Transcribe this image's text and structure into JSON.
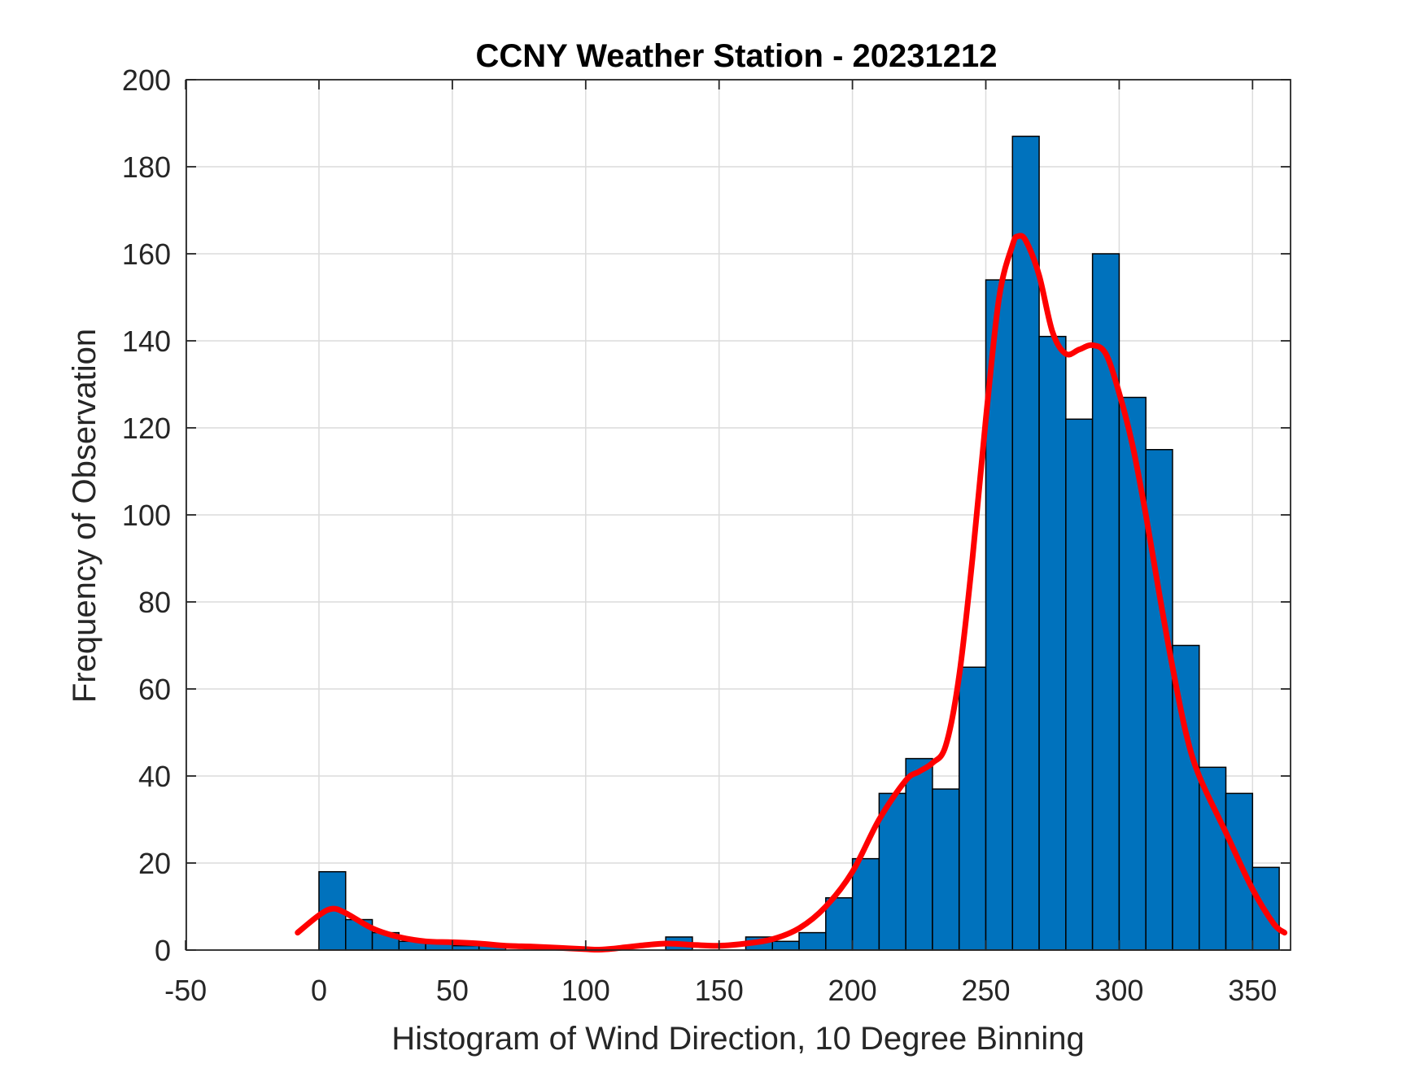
{
  "chart_data": {
    "type": "bar",
    "title": "CCNY Weather Station - 20231212",
    "xlabel": "Histogram of Wind Direction, 10 Degree Binning",
    "ylabel": "Frequency of Observation",
    "xlim": [
      -50,
      365
    ],
    "ylim": [
      0,
      200
    ],
    "xticks": [
      "-50",
      "0",
      "50",
      "100",
      "150",
      "200",
      "250",
      "300",
      "350"
    ],
    "yticks": [
      "0",
      "20",
      "40",
      "60",
      "80",
      "100",
      "120",
      "140",
      "160",
      "180",
      "200"
    ],
    "grid": true,
    "bin_width": 10,
    "bins": [
      {
        "x0": 0,
        "x1": 10,
        "count": 18
      },
      {
        "x0": 10,
        "x1": 20,
        "count": 7
      },
      {
        "x0": 20,
        "x1": 30,
        "count": 4
      },
      {
        "x0": 30,
        "x1": 40,
        "count": 2
      },
      {
        "x0": 40,
        "x1": 50,
        "count": 2
      },
      {
        "x0": 50,
        "x1": 60,
        "count": 1
      },
      {
        "x0": 60,
        "x1": 70,
        "count": 1
      },
      {
        "x0": 70,
        "x1": 80,
        "count": 0
      },
      {
        "x0": 80,
        "x1": 90,
        "count": 0
      },
      {
        "x0": 90,
        "x1": 100,
        "count": 0
      },
      {
        "x0": 100,
        "x1": 110,
        "count": 0
      },
      {
        "x0": 110,
        "x1": 120,
        "count": 0
      },
      {
        "x0": 120,
        "x1": 130,
        "count": 0
      },
      {
        "x0": 130,
        "x1": 140,
        "count": 3
      },
      {
        "x0": 140,
        "x1": 150,
        "count": 0
      },
      {
        "x0": 150,
        "x1": 160,
        "count": 0
      },
      {
        "x0": 160,
        "x1": 170,
        "count": 3
      },
      {
        "x0": 170,
        "x1": 180,
        "count": 2
      },
      {
        "x0": 180,
        "x1": 190,
        "count": 4
      },
      {
        "x0": 190,
        "x1": 200,
        "count": 12
      },
      {
        "x0": 200,
        "x1": 210,
        "count": 21
      },
      {
        "x0": 210,
        "x1": 220,
        "count": 36
      },
      {
        "x0": 220,
        "x1": 230,
        "count": 44
      },
      {
        "x0": 230,
        "x1": 240,
        "count": 37
      },
      {
        "x0": 240,
        "x1": 250,
        "count": 65
      },
      {
        "x0": 250,
        "x1": 260,
        "count": 154
      },
      {
        "x0": 260,
        "x1": 270,
        "count": 187
      },
      {
        "x0": 270,
        "x1": 280,
        "count": 141
      },
      {
        "x0": 280,
        "x1": 290,
        "count": 122
      },
      {
        "x0": 290,
        "x1": 300,
        "count": 160
      },
      {
        "x0": 300,
        "x1": 310,
        "count": 127
      },
      {
        "x0": 310,
        "x1": 320,
        "count": 115
      },
      {
        "x0": 320,
        "x1": 330,
        "count": 70
      },
      {
        "x0": 330,
        "x1": 340,
        "count": 42
      },
      {
        "x0": 340,
        "x1": 350,
        "count": 36
      },
      {
        "x0": 350,
        "x1": 360,
        "count": 19
      }
    ],
    "curve": {
      "x": [
        -8,
        0,
        5,
        10,
        20,
        30,
        40,
        50,
        60,
        70,
        80,
        90,
        100,
        105,
        110,
        120,
        130,
        140,
        150,
        160,
        170,
        180,
        190,
        200,
        210,
        220,
        225,
        230,
        235,
        240,
        245,
        250,
        255,
        260,
        262,
        265,
        270,
        275,
        280,
        285,
        290,
        295,
        300,
        305,
        310,
        315,
        320,
        325,
        330,
        340,
        350,
        358,
        362
      ],
      "y": [
        4,
        8,
        9.5,
        8.5,
        5,
        3,
        2,
        1.8,
        1.5,
        1,
        0.8,
        0.5,
        0.2,
        0.1,
        0.3,
        1,
        1.5,
        1.2,
        1,
        1.5,
        2.5,
        5,
        10,
        18,
        30,
        39,
        41,
        43,
        47,
        63,
        90,
        122,
        150,
        162,
        164,
        163,
        155,
        142,
        137,
        138,
        139,
        137,
        128,
        116,
        100,
        82,
        65,
        50,
        40,
        27,
        14,
        6,
        4
      ]
    },
    "colors": {
      "bar_fill": "#0072BD",
      "bar_edge": "#000000",
      "curve": "#FF0000",
      "grid": "#DCDCDC",
      "axis": "#262626"
    }
  }
}
